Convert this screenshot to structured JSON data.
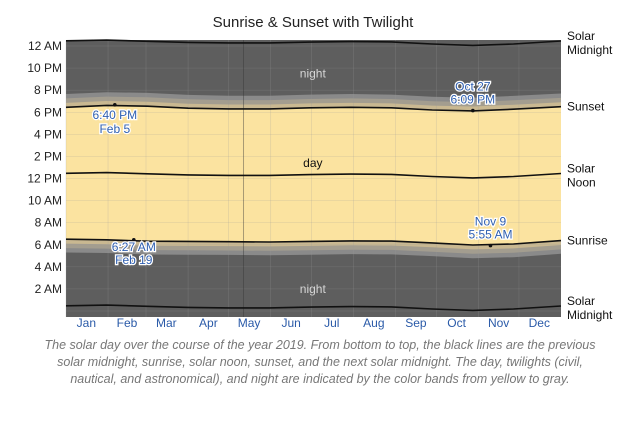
{
  "chart_data": {
    "type": "area",
    "title": "Sunrise & Sunset with Twilight",
    "year": 2019,
    "xlabels": [
      "Jan",
      "Feb",
      "Mar",
      "Apr",
      "May",
      "Jun",
      "Jul",
      "Aug",
      "Sep",
      "Oct",
      "Nov",
      "Dec"
    ],
    "ylabels": [
      "12 AM",
      "10 PM",
      "8 PM",
      "6 PM",
      "4 PM",
      "2 PM",
      "12 PM",
      "10 AM",
      "8 AM",
      "6 AM",
      "4 AM",
      "2 AM"
    ],
    "ylim": [
      0,
      24
    ],
    "right_labels": [
      "Solar Midnight",
      "Sunset",
      "Solar Noon",
      "Sunrise",
      "Solar Midnight"
    ],
    "band_labels": {
      "night_top": "night",
      "day": "day",
      "night_bottom": "night"
    },
    "series": {
      "x_day": [
        0,
        30,
        60,
        90,
        120,
        150,
        180,
        210,
        240,
        270,
        300,
        330,
        365
      ],
      "sunrise": [
        6.5,
        6.45,
        6.32,
        6.3,
        6.28,
        6.25,
        6.3,
        6.35,
        6.33,
        6.17,
        5.98,
        6.07,
        6.38
      ],
      "sunset": [
        18.45,
        18.62,
        18.55,
        18.37,
        18.3,
        18.3,
        18.4,
        18.45,
        18.4,
        18.2,
        18.12,
        18.28,
        18.5
      ],
      "solar_noon": [
        12.47,
        12.53,
        12.43,
        12.33,
        12.28,
        12.28,
        12.35,
        12.4,
        12.37,
        12.18,
        12.05,
        12.18,
        12.45
      ],
      "solar_midnight_prev": [
        0.47,
        0.53,
        0.43,
        0.33,
        0.28,
        0.28,
        0.35,
        0.4,
        0.37,
        0.18,
        0.05,
        0.18,
        0.45
      ],
      "solar_midnight_next": [
        24.47,
        24.53,
        24.43,
        24.33,
        24.28,
        24.28,
        24.35,
        24.4,
        24.37,
        24.18,
        24.05,
        24.18,
        24.45
      ],
      "twilight_offsets_hours": [
        0.4,
        0.8,
        1.2
      ]
    },
    "annotations": [
      {
        "day": 36,
        "value": 18.67,
        "label_time": "6:40 PM",
        "label_date": "Feb 5"
      },
      {
        "day": 50,
        "value": 6.45,
        "label_time": "6:27 AM",
        "label_date": "Feb 19"
      },
      {
        "day": 300,
        "value": 18.15,
        "label_time": "6:09 PM",
        "label_date": "Oct 27"
      },
      {
        "day": 313,
        "value": 5.92,
        "label_time": "5:55 AM",
        "label_date": "Nov 9"
      }
    ],
    "colors": {
      "day": "#fbe3a0",
      "civil": "#c9b891",
      "nautical": "#a39d8f",
      "astronomical": "#8a8a8a",
      "night": "#5e5e5e",
      "line": "#111111",
      "grid": "#9a9a9a"
    }
  },
  "caption": "The solar day over the course of the year 2019. From bottom to top, the black lines are the previous solar midnight, sunrise, solar noon, sunset, and the next solar midnight. The day, twilights (civil, nautical, and astronomical), and night are indicated by the color bands from yellow to gray."
}
